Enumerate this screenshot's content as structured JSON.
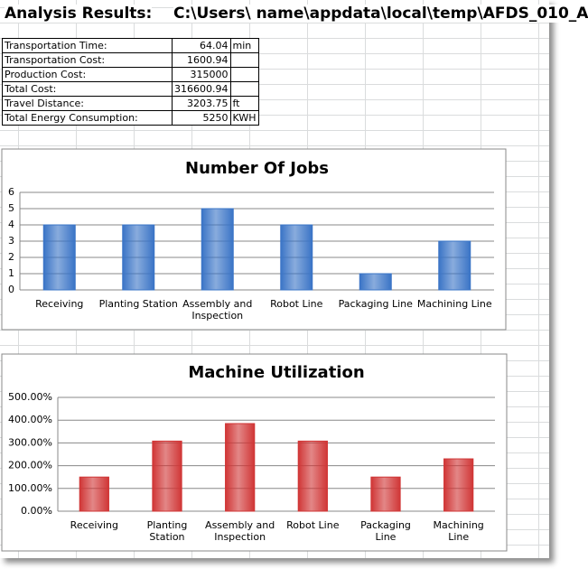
{
  "header": {
    "title": "Analysis Results:",
    "path": "C:\\Users\\ name\\appdata\\local\\temp\\AFDS_010_A"
  },
  "table": {
    "rows": [
      [
        "Transportation Time:",
        64.04,
        "min"
      ],
      [
        "Transportation Cost:",
        1600.94
      ],
      [
        "Production Cost:",
        315000
      ],
      [
        "Total Cost:",
        316600.94
      ],
      [
        "Travel Distance:",
        3203.75,
        "ft"
      ],
      [
        "Total Energy Consumption:",
        5250,
        "KWH"
      ]
    ]
  },
  "chart_data": [
    {
      "type": "bar",
      "title": "Number Of Jobs",
      "categories": [
        "Receiving",
        "Planting Station",
        "Assembly and Inspection",
        "Robot Line",
        "Packaging Line",
        "Machining Line"
      ],
      "values": [
        4,
        4,
        5,
        4,
        1,
        3
      ],
      "color": "#3a74c6",
      "ylim": [
        0,
        6
      ],
      "yticks": [
        0,
        1,
        2,
        3,
        4,
        5,
        6
      ],
      "grid": true
    },
    {
      "type": "bar",
      "title": "Machine Utilization",
      "categories": [
        "Receiving",
        "Planting Station",
        "Assembly and Inspection",
        "Robot Line",
        "Packaging Line",
        "Machining Line"
      ],
      "values": [
        150,
        308,
        385,
        308,
        150,
        230
      ],
      "color": "#d03636",
      "ylim": [
        0,
        500
      ],
      "yticks": [
        {
          "value": 0,
          "label": "0.00%"
        },
        {
          "value": 100,
          "label": "100.00%"
        },
        {
          "value": 200,
          "label": "200.00%"
        },
        {
          "value": 300,
          "label": "300.00%"
        },
        {
          "value": 400,
          "label": "400.00%"
        },
        {
          "value": 500,
          "label": "500.00%"
        }
      ],
      "grid": true
    }
  ]
}
